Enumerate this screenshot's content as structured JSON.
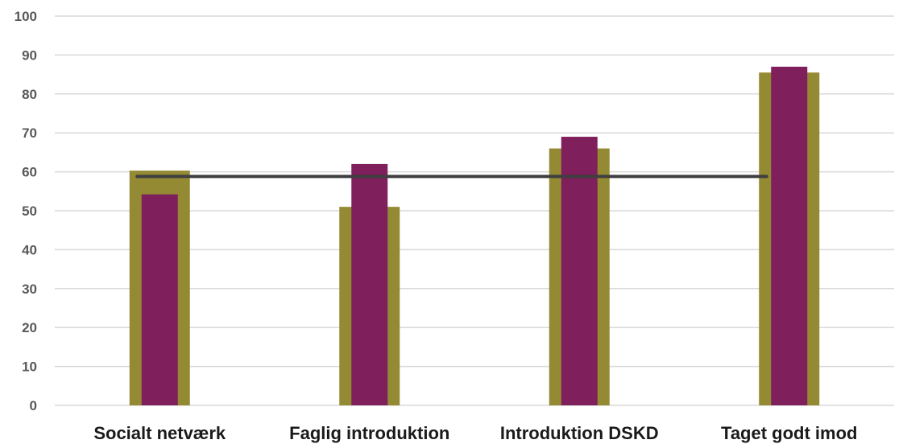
{
  "chart_data": {
    "type": "bar",
    "categories": [
      "Socialt netværk",
      "Faglig introduktion",
      "Introduktion DSKD",
      "Taget godt imod"
    ],
    "series": [
      {
        "values": [
          60.3,
          51.0,
          66.0,
          85.5
        ],
        "color": "#948A34"
      },
      {
        "values": [
          54.2,
          62.0,
          69.0,
          87.0
        ],
        "color": "#7F1F5B"
      }
    ],
    "reference_line": {
      "value": 58.8,
      "color": "#3F3F3F"
    },
    "title": "",
    "xlabel": "",
    "ylabel": "",
    "ylim": [
      0,
      100
    ],
    "yticks": [
      0,
      10,
      20,
      30,
      40,
      50,
      60,
      70,
      80,
      90,
      100
    ],
    "grid": true,
    "legend": "none"
  }
}
